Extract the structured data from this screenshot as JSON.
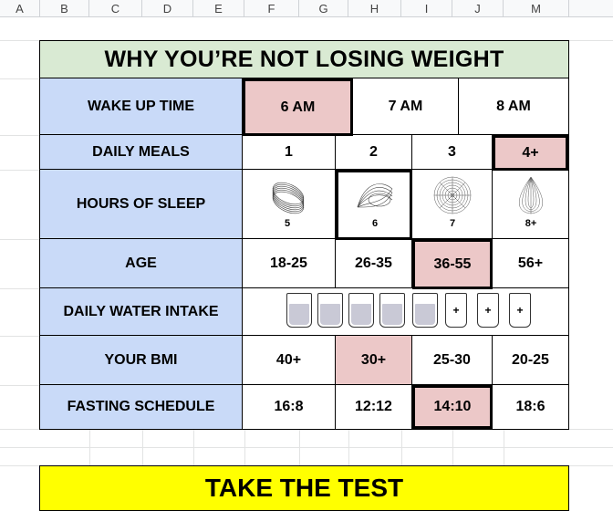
{
  "columns": [
    "A",
    "B",
    "C",
    "D",
    "E",
    "F",
    "G",
    "H",
    "I",
    "J",
    "M"
  ],
  "title": "WHY YOU’RE NOT LOSING WEIGHT",
  "rows": [
    {
      "label": "WAKE UP TIME",
      "options": [
        "6 AM",
        "7 AM",
        "8 AM"
      ]
    },
    {
      "label": "DAILY MEALS",
      "options": [
        "1",
        "2",
        "3",
        "4+"
      ]
    },
    {
      "label": "HOURS OF SLEEP",
      "options": [
        "5",
        "6",
        "7",
        "8+"
      ]
    },
    {
      "label": "AGE",
      "options": [
        "18-25",
        "26-35",
        "36-55",
        "56+"
      ]
    },
    {
      "label": "DAILY WATER INTAKE",
      "glass_filled": 5,
      "glass_plus": 3,
      "plus_symbol": "+"
    },
    {
      "label": "YOUR BMI",
      "options": [
        "40+",
        "30+",
        "25-30",
        "20-25"
      ]
    },
    {
      "label": "FASTING SCHEDULE",
      "options": [
        "16:8",
        "12:12",
        "14:10",
        "18:6"
      ]
    }
  ],
  "cta": "TAKE THE TEST",
  "colors": {
    "label_bg": "#c9daf8",
    "selected_bg": "#ecc8c8",
    "title_bg": "#d9ead3",
    "cta_bg": "#ffff00"
  }
}
